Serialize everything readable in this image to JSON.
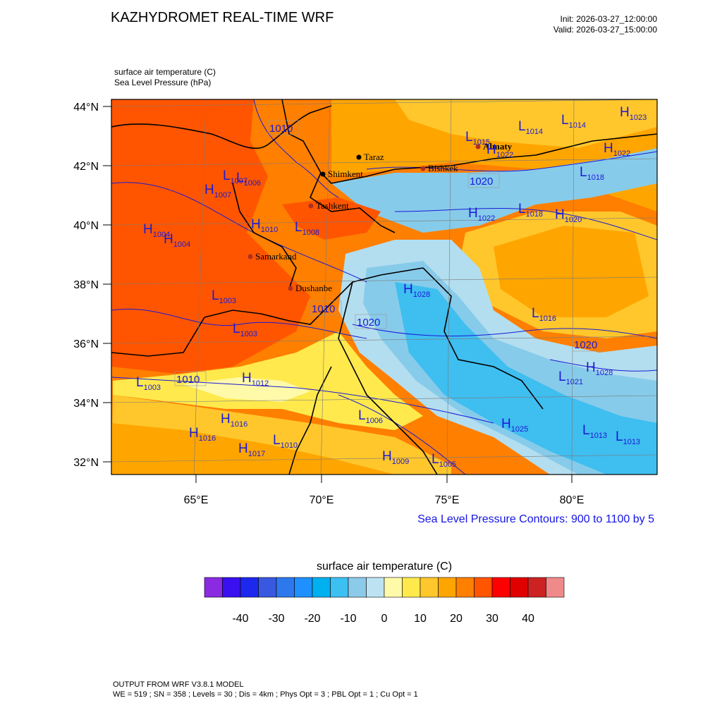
{
  "header": {
    "title": "KAZHYDROMET REAL-TIME WRF",
    "init": "Init: 2026-03-27_12:00:00",
    "valid": "Valid: 2026-03-27_15:00:00",
    "var1": "surface air temperature   (C)",
    "var2": "Sea Level Pressure   (hPa)"
  },
  "map": {
    "lat_labels": [
      "44°N",
      "42°N",
      "40°N",
      "38°N",
      "36°N",
      "34°N",
      "32°N"
    ],
    "lon_labels": [
      "65°E",
      "70°E",
      "75°E",
      "80°E"
    ],
    "cities": [
      "Taraz",
      "Shimkent",
      "Bishkek",
      "Almaty",
      "Tashkent",
      "Samarkand",
      "Dushanbe"
    ],
    "contour_labels": [
      "1010",
      "1010",
      "1010",
      "1020",
      "1020",
      "1020"
    ],
    "pressure_centers": [
      {
        "letter": "H",
        "value": "1023"
      },
      {
        "letter": "L",
        "value": "1014"
      },
      {
        "letter": "L",
        "value": "1014"
      },
      {
        "letter": "L",
        "value": "1015"
      },
      {
        "letter": "H",
        "value": "1022"
      },
      {
        "letter": "H",
        "value": "1007"
      },
      {
        "letter": "L",
        "value": "1006"
      },
      {
        "letter": "L",
        "value": "1007"
      },
      {
        "letter": "H",
        "value": "1004"
      },
      {
        "letter": "H",
        "value": "1004"
      },
      {
        "letter": "H",
        "value": "1010"
      },
      {
        "letter": "L",
        "value": "1008"
      },
      {
        "letter": "L",
        "value": "1003"
      },
      {
        "letter": "L",
        "value": "1003"
      },
      {
        "letter": "L",
        "value": "1003"
      },
      {
        "letter": "H",
        "value": "1012"
      },
      {
        "letter": "H",
        "value": "1016"
      },
      {
        "letter": "H",
        "value": "1016"
      },
      {
        "letter": "H",
        "value": "1017"
      },
      {
        "letter": "L",
        "value": "1010"
      },
      {
        "letter": "H",
        "value": "1009"
      },
      {
        "letter": "L",
        "value": "1005"
      },
      {
        "letter": "L",
        "value": "1006"
      },
      {
        "letter": "H",
        "value": "1022"
      },
      {
        "letter": "L",
        "value": "1018"
      },
      {
        "letter": "H",
        "value": "1020"
      },
      {
        "letter": "H",
        "value": "1022"
      },
      {
        "letter": "L",
        "value": "1016"
      },
      {
        "letter": "H",
        "value": "1028"
      },
      {
        "letter": "L",
        "value": "1021"
      },
      {
        "letter": "H",
        "value": "1028"
      },
      {
        "letter": "L",
        "value": "1018"
      },
      {
        "letter": "H",
        "value": "1025"
      },
      {
        "letter": "L",
        "value": "1013"
      },
      {
        "letter": "L",
        "value": "1013"
      }
    ],
    "colors": {
      "ocean_hot": "#ff5500",
      "hot": "#ff7f00",
      "warm": "#ffa500",
      "mild": "#ffc72c",
      "cool": "#ffe94d",
      "pale": "#fffaaa",
      "cold1": "#b3deef",
      "cold2": "#87cbea",
      "cold3": "#3fbef0",
      "contour": "#1a1ad6",
      "border": "#000000"
    }
  },
  "contour_note": "Sea Level Pressure Contours: 900 to 1100 by 5",
  "colorbar": {
    "title": "surface air temperature  (C)",
    "colors": [
      "#8a2be2",
      "#3a10f0",
      "#1c28ee",
      "#3858e0",
      "#2e78ee",
      "#1e90ff",
      "#00b0f0",
      "#3cc0f2",
      "#8ccaea",
      "#bde3f3",
      "#fffaaa",
      "#ffe94d",
      "#ffc72c",
      "#ffa500",
      "#ff7f00",
      "#ff5500",
      "#ff0000",
      "#e00000",
      "#cc2222",
      "#f08a8a"
    ],
    "tick_labels": [
      "-40",
      "-30",
      "-20",
      "-10",
      "0",
      "10",
      "20",
      "30",
      "40"
    ]
  },
  "footer": {
    "line1": "OUTPUT FROM WRF V3.8.1 MODEL",
    "line2": "WE = 519 ; SN = 358 ; Levels = 30 ; Dis = 4km ; Phys Opt = 3 ; PBL Opt = 1 ; Cu Opt = 1"
  }
}
